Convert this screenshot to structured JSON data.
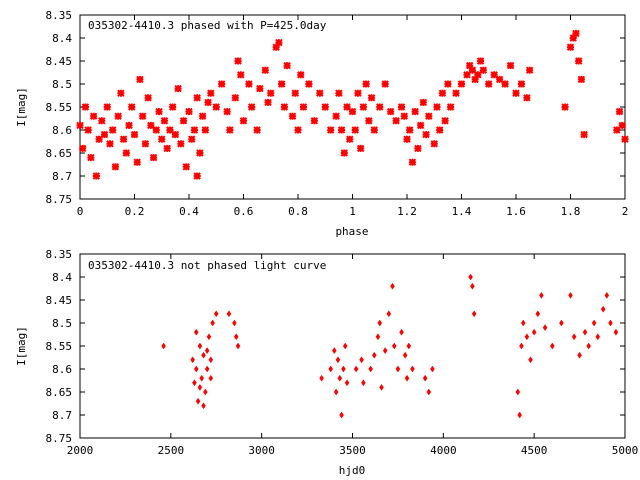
{
  "chart_data": [
    {
      "type": "scatter",
      "title": "035302-4410.3 phased with P=425.0day",
      "xlabel": "phase",
      "ylabel": "I[mag]",
      "xlim": [
        0,
        2
      ],
      "ylim": [
        8.75,
        8.35
      ],
      "y_inverted": true,
      "marker_color": "#ff0000",
      "grid": false,
      "x_ticks": [
        "0",
        "0.2",
        "0.4",
        "0.6",
        "0.8",
        "1",
        "1.2",
        "1.4",
        "1.6",
        "1.8",
        "2"
      ],
      "y_ticks": [
        "8.35",
        "8.4",
        "8.45",
        "8.5",
        "8.55",
        "8.6",
        "8.65",
        "8.7",
        "8.75"
      ],
      "points": [
        [
          0.0,
          8.59
        ],
        [
          0.01,
          8.64
        ],
        [
          0.02,
          8.55
        ],
        [
          0.03,
          8.6
        ],
        [
          0.04,
          8.66
        ],
        [
          0.05,
          8.57
        ],
        [
          0.06,
          8.7
        ],
        [
          0.07,
          8.62
        ],
        [
          0.08,
          8.58
        ],
        [
          0.09,
          8.61
        ],
        [
          0.1,
          8.55
        ],
        [
          0.11,
          8.63
        ],
        [
          0.12,
          8.6
        ],
        [
          0.13,
          8.68
        ],
        [
          0.14,
          8.57
        ],
        [
          0.15,
          8.52
        ],
        [
          0.16,
          8.62
        ],
        [
          0.17,
          8.65
        ],
        [
          0.18,
          8.59
        ],
        [
          0.19,
          8.55
        ],
        [
          0.2,
          8.61
        ],
        [
          0.21,
          8.67
        ],
        [
          0.22,
          8.49
        ],
        [
          0.23,
          8.57
        ],
        [
          0.24,
          8.63
        ],
        [
          0.25,
          8.53
        ],
        [
          0.26,
          8.59
        ],
        [
          0.27,
          8.66
        ],
        [
          0.28,
          8.6
        ],
        [
          0.29,
          8.56
        ],
        [
          0.3,
          8.62
        ],
        [
          0.31,
          8.58
        ],
        [
          0.32,
          8.64
        ],
        [
          0.33,
          8.6
        ],
        [
          0.34,
          8.55
        ],
        [
          0.35,
          8.61
        ],
        [
          0.36,
          8.51
        ],
        [
          0.37,
          8.63
        ],
        [
          0.38,
          8.58
        ],
        [
          0.39,
          8.68
        ],
        [
          0.4,
          8.56
        ],
        [
          0.41,
          8.62
        ],
        [
          0.42,
          8.6
        ],
        [
          0.43,
          8.53
        ],
        [
          0.44,
          8.65
        ],
        [
          0.45,
          8.57
        ],
        [
          0.46,
          8.6
        ],
        [
          0.47,
          8.54
        ],
        [
          0.43,
          8.7
        ],
        [
          0.48,
          8.52
        ],
        [
          0.5,
          8.55
        ],
        [
          0.52,
          8.5
        ],
        [
          0.54,
          8.56
        ],
        [
          0.55,
          8.6
        ],
        [
          0.57,
          8.53
        ],
        [
          0.58,
          8.45
        ],
        [
          0.59,
          8.48
        ],
        [
          0.6,
          8.58
        ],
        [
          0.62,
          8.5
        ],
        [
          0.63,
          8.55
        ],
        [
          0.65,
          8.6
        ],
        [
          0.66,
          8.51
        ],
        [
          0.68,
          8.47
        ],
        [
          0.69,
          8.54
        ],
        [
          0.7,
          8.52
        ],
        [
          0.72,
          8.42
        ],
        [
          0.73,
          8.41
        ],
        [
          0.74,
          8.5
        ],
        [
          0.75,
          8.55
        ],
        [
          0.76,
          8.46
        ],
        [
          0.78,
          8.57
        ],
        [
          0.79,
          8.52
        ],
        [
          0.8,
          8.6
        ],
        [
          0.81,
          8.48
        ],
        [
          0.82,
          8.55
        ],
        [
          0.84,
          8.5
        ],
        [
          0.86,
          8.58
        ],
        [
          0.88,
          8.52
        ],
        [
          0.9,
          8.55
        ],
        [
          0.92,
          8.6
        ],
        [
          0.94,
          8.57
        ],
        [
          0.95,
          8.52
        ],
        [
          0.96,
          8.6
        ],
        [
          0.97,
          8.65
        ],
        [
          0.98,
          8.55
        ],
        [
          0.99,
          8.62
        ],
        [
          1.0,
          8.56
        ],
        [
          1.01,
          8.6
        ],
        [
          1.02,
          8.52
        ],
        [
          1.03,
          8.64
        ],
        [
          1.04,
          8.55
        ],
        [
          1.05,
          8.5
        ],
        [
          1.06,
          8.58
        ],
        [
          1.07,
          8.53
        ],
        [
          1.08,
          8.6
        ],
        [
          1.1,
          8.55
        ],
        [
          1.12,
          8.5
        ],
        [
          1.14,
          8.56
        ],
        [
          1.16,
          8.58
        ],
        [
          1.18,
          8.55
        ],
        [
          1.19,
          8.57
        ],
        [
          1.2,
          8.62
        ],
        [
          1.21,
          8.6
        ],
        [
          1.22,
          8.67
        ],
        [
          1.23,
          8.56
        ],
        [
          1.24,
          8.64
        ],
        [
          1.25,
          8.59
        ],
        [
          1.26,
          8.54
        ],
        [
          1.27,
          8.61
        ],
        [
          1.28,
          8.57
        ],
        [
          1.3,
          8.63
        ],
        [
          1.31,
          8.55
        ],
        [
          1.32,
          8.6
        ],
        [
          1.33,
          8.52
        ],
        [
          1.34,
          8.58
        ],
        [
          1.35,
          8.5
        ],
        [
          1.36,
          8.55
        ],
        [
          1.38,
          8.52
        ],
        [
          1.4,
          8.5
        ],
        [
          1.42,
          8.48
        ],
        [
          1.43,
          8.46
        ],
        [
          1.44,
          8.47
        ],
        [
          1.45,
          8.49
        ],
        [
          1.46,
          8.48
        ],
        [
          1.47,
          8.45
        ],
        [
          1.48,
          8.47
        ],
        [
          1.5,
          8.5
        ],
        [
          1.52,
          8.48
        ],
        [
          1.54,
          8.49
        ],
        [
          1.56,
          8.5
        ],
        [
          1.58,
          8.46
        ],
        [
          1.6,
          8.52
        ],
        [
          1.62,
          8.5
        ],
        [
          1.64,
          8.53
        ],
        [
          1.65,
          8.47
        ],
        [
          1.78,
          8.55
        ],
        [
          1.8,
          8.42
        ],
        [
          1.81,
          8.4
        ],
        [
          1.82,
          8.39
        ],
        [
          1.83,
          8.45
        ],
        [
          1.84,
          8.49
        ],
        [
          1.85,
          8.61
        ],
        [
          1.97,
          8.6
        ],
        [
          1.98,
          8.56
        ],
        [
          1.99,
          8.59
        ],
        [
          2.0,
          8.62
        ]
      ]
    },
    {
      "type": "scatter",
      "title": "035302-4410.3 not phased light curve",
      "xlabel": "hjd0",
      "ylabel": "I[mag]",
      "xlim": [
        2000,
        5000
      ],
      "ylim": [
        8.75,
        8.35
      ],
      "y_inverted": true,
      "marker_color": "#ff0000",
      "grid": false,
      "x_ticks": [
        "2000",
        "2500",
        "3000",
        "3500",
        "4000",
        "4500",
        "5000"
      ],
      "y_ticks": [
        "8.35",
        "8.4",
        "8.45",
        "8.5",
        "8.55",
        "8.6",
        "8.65",
        "8.7",
        "8.75"
      ],
      "points": [
        [
          2460,
          8.55
        ],
        [
          2620,
          8.58
        ],
        [
          2630,
          8.63
        ],
        [
          2640,
          8.6
        ],
        [
          2650,
          8.67
        ],
        [
          2660,
          8.55
        ],
        [
          2670,
          8.62
        ],
        [
          2680,
          8.57
        ],
        [
          2690,
          8.65
        ],
        [
          2700,
          8.6
        ],
        [
          2710,
          8.53
        ],
        [
          2720,
          8.58
        ],
        [
          2730,
          8.5
        ],
        [
          2640,
          8.52
        ],
        [
          2660,
          8.64
        ],
        [
          2680,
          8.68
        ],
        [
          2700,
          8.56
        ],
        [
          2720,
          8.62
        ],
        [
          2750,
          8.48
        ],
        [
          2820,
          8.48
        ],
        [
          2850,
          8.5
        ],
        [
          2860,
          8.53
        ],
        [
          2870,
          8.55
        ],
        [
          3330,
          8.62
        ],
        [
          3380,
          8.6
        ],
        [
          3400,
          8.56
        ],
        [
          3410,
          8.65
        ],
        [
          3420,
          8.58
        ],
        [
          3430,
          8.62
        ],
        [
          3440,
          8.7
        ],
        [
          3450,
          8.6
        ],
        [
          3460,
          8.55
        ],
        [
          3470,
          8.63
        ],
        [
          3520,
          8.6
        ],
        [
          3550,
          8.58
        ],
        [
          3560,
          8.63
        ],
        [
          3600,
          8.6
        ],
        [
          3620,
          8.57
        ],
        [
          3640,
          8.53
        ],
        [
          3650,
          8.5
        ],
        [
          3660,
          8.64
        ],
        [
          3680,
          8.56
        ],
        [
          3700,
          8.48
        ],
        [
          3720,
          8.42
        ],
        [
          3730,
          8.55
        ],
        [
          3750,
          8.6
        ],
        [
          3770,
          8.52
        ],
        [
          3790,
          8.57
        ],
        [
          3800,
          8.62
        ],
        [
          3810,
          8.55
        ],
        [
          3830,
          8.6
        ],
        [
          3900,
          8.62
        ],
        [
          3920,
          8.65
        ],
        [
          3940,
          8.6
        ],
        [
          4150,
          8.4
        ],
        [
          4160,
          8.42
        ],
        [
          4170,
          8.48
        ],
        [
          4410,
          8.65
        ],
        [
          4420,
          8.7
        ],
        [
          4430,
          8.55
        ],
        [
          4440,
          8.5
        ],
        [
          4460,
          8.53
        ],
        [
          4480,
          8.58
        ],
        [
          4500,
          8.52
        ],
        [
          4520,
          8.48
        ],
        [
          4540,
          8.44
        ],
        [
          4560,
          8.51
        ],
        [
          4600,
          8.55
        ],
        [
          4650,
          8.5
        ],
        [
          4700,
          8.44
        ],
        [
          4720,
          8.53
        ],
        [
          4750,
          8.57
        ],
        [
          4780,
          8.52
        ],
        [
          4800,
          8.55
        ],
        [
          4830,
          8.5
        ],
        [
          4850,
          8.53
        ],
        [
          4880,
          8.47
        ],
        [
          4900,
          8.44
        ],
        [
          4920,
          8.5
        ],
        [
          4950,
          8.52
        ]
      ]
    }
  ]
}
